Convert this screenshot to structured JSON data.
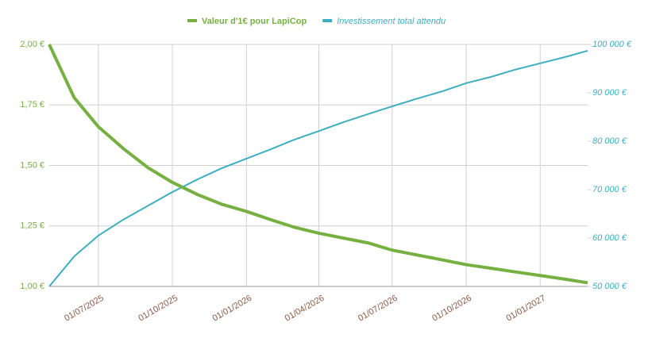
{
  "chart_data": {
    "type": "line",
    "x": [
      "01/05/2025",
      "01/06/2025",
      "01/07/2025",
      "01/08/2025",
      "01/09/2025",
      "01/10/2025",
      "01/11/2025",
      "01/12/2025",
      "01/01/2026",
      "01/02/2026",
      "01/03/2026",
      "01/04/2026",
      "01/05/2026",
      "01/06/2026",
      "01/07/2026",
      "01/08/2026",
      "01/09/2026",
      "01/10/2026",
      "01/11/2026",
      "01/12/2026",
      "01/01/2027",
      "01/02/2027",
      "01/03/2027"
    ],
    "xlim": [
      "01/05/2025",
      "01/03/2027"
    ],
    "xticks": [
      "01/07/2025",
      "01/10/2025",
      "01/01/2026",
      "01/04/2026",
      "01/07/2026",
      "01/10/2026",
      "01/01/2027"
    ],
    "ylim": [
      1,
      2
    ],
    "yticks": [
      {
        "value": 1,
        "label": "1,00 €"
      },
      {
        "value": 1.25,
        "label": "1,25 €"
      },
      {
        "value": 1.5,
        "label": "1,50 €"
      },
      {
        "value": 1.75,
        "label": "1,75 €"
      },
      {
        "value": 2,
        "label": "2,00 €"
      }
    ],
    "y2lim": [
      50000,
      100000
    ],
    "y2ticks": [
      {
        "value": 50000,
        "label": "50 000 €"
      },
      {
        "value": 60000,
        "label": "60 000 €"
      },
      {
        "value": 70000,
        "label": "70 000 €"
      },
      {
        "value": 80000,
        "label": "80 000 €"
      },
      {
        "value": 90000,
        "label": "90 000 €"
      },
      {
        "value": 100000,
        "label": "100 000 €"
      }
    ],
    "grid": true,
    "series": [
      {
        "name": "Valeur d'1€ pour LapiCop",
        "color": "#76b041",
        "values": [
          2.0,
          1.78,
          1.66,
          1.57,
          1.49,
          1.43,
          1.38,
          1.34,
          1.31,
          1.275,
          1.245,
          1.22,
          1.2,
          1.18,
          1.15,
          1.13,
          1.11,
          1.09,
          1.075,
          1.06,
          1.045,
          1.03,
          1.015
        ]
      },
      {
        "name": "Investissement total attendu",
        "color": "#3eaec0",
        "axis": "y2",
        "values": [
          50000,
          56200,
          60500,
          63800,
          66700,
          69500,
          72100,
          74400,
          76400,
          78400,
          80300,
          82100,
          83900,
          85600,
          87200,
          88800,
          90300,
          92000,
          93300,
          94800,
          96100,
          97400,
          98700
        ]
      }
    ]
  }
}
